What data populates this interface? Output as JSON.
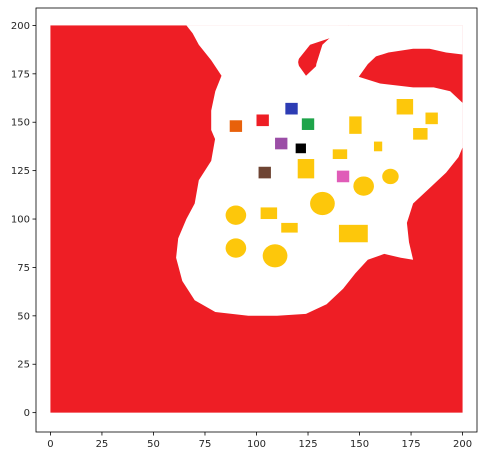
{
  "chart_data": {
    "type": "heatmap",
    "title": "",
    "xlabel": "",
    "ylabel": "",
    "xlim": [
      -7,
      207
    ],
    "ylim": [
      -10,
      209
    ],
    "xticks": [
      0,
      25,
      50,
      75,
      100,
      125,
      150,
      175,
      200
    ],
    "yticks": [
      0,
      25,
      50,
      75,
      100,
      125,
      150,
      175,
      200
    ],
    "grid": false,
    "grid_extent": {
      "x": [
        0,
        200
      ],
      "y": [
        0,
        200
      ]
    },
    "colors": {
      "obstacle": "#ee1e25",
      "free_space": "#ffffff",
      "resource": "#fdc70b"
    },
    "free_region_outline": [
      [
        66,
        200
      ],
      [
        145,
        200
      ],
      [
        132,
        195
      ],
      [
        124,
        187
      ],
      [
        121,
        178
      ],
      [
        124,
        170
      ],
      [
        122,
        162
      ],
      [
        125,
        152
      ],
      [
        132,
        140
      ],
      [
        138,
        136
      ],
      [
        148,
        130
      ],
      [
        160,
        123
      ],
      [
        170,
        118
      ],
      [
        178,
        117
      ],
      [
        186,
        119
      ],
      [
        192,
        124
      ],
      [
        198,
        131
      ],
      [
        200,
        137
      ],
      [
        200,
        119
      ],
      [
        188,
        118
      ],
      [
        176,
        108
      ],
      [
        172,
        100
      ],
      [
        172,
        86
      ],
      [
        176,
        80
      ],
      [
        178,
        76
      ],
      [
        168,
        80
      ],
      [
        160,
        82
      ],
      [
        152,
        78
      ],
      [
        145,
        70
      ],
      [
        137,
        60
      ],
      [
        128,
        52
      ],
      [
        108,
        51
      ],
      [
        98,
        50
      ],
      [
        86,
        52
      ],
      [
        75,
        54
      ],
      [
        70,
        56
      ],
      [
        65,
        66
      ],
      [
        61,
        80
      ],
      [
        62,
        92
      ],
      [
        66,
        100
      ],
      [
        70,
        108
      ],
      [
        72,
        118
      ],
      [
        78,
        127
      ],
      [
        82,
        134
      ],
      [
        86,
        140
      ],
      [
        90,
        148
      ],
      [
        92,
        160
      ],
      [
        96,
        170
      ],
      [
        100,
        180
      ],
      [
        108,
        186
      ],
      [
        112,
        182
      ],
      [
        106,
        176
      ],
      [
        103,
        170
      ],
      [
        101,
        160
      ],
      [
        100,
        154
      ],
      [
        104,
        145
      ],
      [
        110,
        136
      ],
      [
        118,
        130
      ],
      [
        120,
        128
      ],
      [
        112,
        128
      ],
      [
        96,
        127
      ],
      [
        84,
        136
      ],
      [
        80,
        146
      ],
      [
        78,
        154
      ],
      [
        78,
        162
      ],
      [
        80,
        172
      ],
      [
        74,
        182
      ],
      [
        70,
        190
      ]
    ],
    "free_region_outline_b": [
      [
        66,
        200
      ],
      [
        145,
        200
      ],
      [
        140,
        195
      ],
      [
        126,
        190
      ],
      [
        120,
        182
      ],
      [
        122,
        172
      ],
      [
        124,
        162
      ],
      [
        124,
        150
      ],
      [
        120,
        140
      ],
      [
        110,
        132
      ],
      [
        100,
        130
      ],
      [
        98,
        128
      ],
      [
        90,
        130
      ],
      [
        82,
        136
      ],
      [
        78,
        146
      ],
      [
        78,
        156
      ],
      [
        80,
        166
      ],
      [
        83,
        174
      ],
      [
        78,
        182
      ],
      [
        72,
        190
      ],
      [
        69,
        196
      ]
    ],
    "free_top_right": [
      [
        145,
        200
      ],
      [
        200,
        200
      ],
      [
        200,
        185
      ],
      [
        192,
        186
      ],
      [
        184,
        188
      ],
      [
        176,
        188
      ],
      [
        170,
        187
      ],
      [
        164,
        186
      ],
      [
        158,
        184
      ],
      [
        154,
        180
      ],
      [
        150,
        174
      ],
      [
        146,
        167
      ],
      [
        140,
        162
      ],
      [
        134,
        160
      ],
      [
        130,
        162
      ],
      [
        128,
        170
      ],
      [
        129,
        180
      ],
      [
        132,
        190
      ],
      [
        138,
        196
      ]
    ],
    "resources": [
      {
        "shape": "rect",
        "x": [
          168,
          176
        ],
        "y": [
          154,
          162
        ]
      },
      {
        "shape": "rect",
        "x": [
          145,
          151
        ],
        "y": [
          144,
          153
        ]
      },
      {
        "shape": "rect",
        "x": [
          176,
          183
        ],
        "y": [
          141,
          147
        ]
      },
      {
        "shape": "rect",
        "x": [
          182,
          188
        ],
        "y": [
          149,
          155
        ]
      },
      {
        "shape": "rect",
        "x": [
          137,
          144
        ],
        "y": [
          131,
          136
        ]
      },
      {
        "shape": "rect",
        "x": [
          157,
          161
        ],
        "y": [
          135,
          140
        ]
      },
      {
        "shape": "rect",
        "x": [
          120,
          128
        ],
        "y": [
          121,
          131
        ]
      },
      {
        "shape": "circle",
        "cx": 152,
        "cy": 117,
        "r": 5
      },
      {
        "shape": "circle",
        "cx": 165,
        "cy": 122,
        "r": 4
      },
      {
        "shape": "circle",
        "cx": 132,
        "cy": 108,
        "r": 6
      },
      {
        "shape": "rect",
        "x": [
          102,
          110
        ],
        "y": [
          100,
          106
        ]
      },
      {
        "shape": "circle",
        "cx": 90,
        "cy": 102,
        "r": 5
      },
      {
        "shape": "rect",
        "x": [
          112,
          120
        ],
        "y": [
          93,
          98
        ]
      },
      {
        "shape": "rect",
        "x": [
          140,
          154
        ],
        "y": [
          88,
          97
        ]
      },
      {
        "shape": "circle",
        "cx": 90,
        "cy": 85,
        "r": 5
      },
      {
        "shape": "circle",
        "cx": 109,
        "cy": 81,
        "r": 6
      }
    ],
    "markers": [
      {
        "color": "#2d3cb4",
        "x": [
          114,
          120
        ],
        "y": [
          154,
          160
        ]
      },
      {
        "color": "#ee1e25",
        "x": [
          100,
          106
        ],
        "y": [
          148,
          154
        ]
      },
      {
        "color": "#1ea44a",
        "x": [
          122,
          128
        ],
        "y": [
          146,
          152
        ]
      },
      {
        "color": "#e8610b",
        "x": [
          87,
          93
        ],
        "y": [
          145,
          151
        ]
      },
      {
        "color": "#9b4ea6",
        "x": [
          109,
          115
        ],
        "y": [
          136,
          142
        ]
      },
      {
        "color": "#000000",
        "x": [
          119,
          124
        ],
        "y": [
          134,
          139
        ]
      },
      {
        "color": "#6e4433",
        "x": [
          101,
          107
        ],
        "y": [
          121,
          127
        ]
      },
      {
        "color": "#e05cb8",
        "x": [
          139,
          145
        ],
        "y": [
          119,
          125
        ]
      }
    ]
  }
}
